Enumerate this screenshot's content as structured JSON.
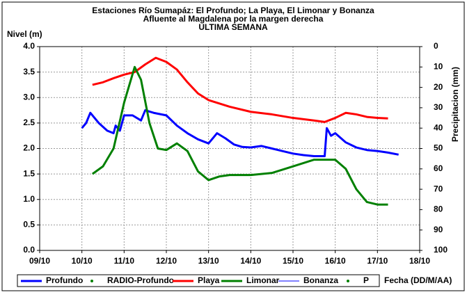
{
  "chart_data": {
    "type": "line",
    "title": "Estaciones Río Sumapáz: El Profundo; La Playa, El Limonar y Bonanza",
    "subtitle": [
      "Afluente al Magdalena por la margen derecha",
      "ULTIMA SEMANA"
    ],
    "ylabel": "Nivel (m)",
    "y2label": "Precipitacion (mm)",
    "xlabel": "Fecha (DD/M/AA)",
    "xlim": [
      9,
      18
    ],
    "xticks": [
      {
        "value": 9,
        "label": "09/10"
      },
      {
        "value": 10,
        "label": "10/10"
      },
      {
        "value": 11,
        "label": "11/10"
      },
      {
        "value": 12,
        "label": "12/10"
      },
      {
        "value": 13,
        "label": "13/10"
      },
      {
        "value": 14,
        "label": "14/10"
      },
      {
        "value": 15,
        "label": "15/10"
      },
      {
        "value": 16,
        "label": "16/10"
      },
      {
        "value": 17,
        "label": "17/10"
      },
      {
        "value": 18,
        "label": "18/10"
      }
    ],
    "ylim": [
      0,
      4
    ],
    "yticks": [
      {
        "value": 0,
        "label": "0.0"
      },
      {
        "value": 0.5,
        "label": "0.5"
      },
      {
        "value": 1,
        "label": "1.0"
      },
      {
        "value": 1.5,
        "label": "1.5"
      },
      {
        "value": 2,
        "label": "2.0"
      },
      {
        "value": 2.5,
        "label": "2.5"
      },
      {
        "value": 3,
        "label": "3.0"
      },
      {
        "value": 3.5,
        "label": "3.5"
      },
      {
        "value": 4,
        "label": "4.0"
      }
    ],
    "y2lim": [
      100,
      0
    ],
    "y2ticks": [
      0,
      10,
      20,
      30,
      40,
      50,
      60,
      70,
      80,
      90,
      100
    ],
    "grid": true,
    "series": [
      {
        "name": "Profundo",
        "color": "#0000ff",
        "marker": "line",
        "width": 3,
        "x": [
          10.0,
          10.1,
          10.2,
          10.4,
          10.6,
          10.75,
          10.8,
          10.9,
          11.0,
          11.2,
          11.4,
          11.5,
          11.7,
          12.0,
          12.25,
          12.5,
          12.75,
          13.0,
          13.2,
          13.4,
          13.6,
          13.8,
          14.0,
          14.25,
          14.5,
          14.75,
          15.0,
          15.25,
          15.5,
          15.75,
          15.8,
          15.9,
          16.0,
          16.25,
          16.5,
          16.75,
          17.0,
          17.25,
          17.5
        ],
        "values": [
          2.4,
          2.5,
          2.7,
          2.5,
          2.35,
          2.3,
          2.45,
          2.35,
          2.65,
          2.65,
          2.55,
          2.75,
          2.7,
          2.65,
          2.45,
          2.3,
          2.18,
          2.1,
          2.3,
          2.2,
          2.08,
          2.03,
          2.02,
          2.05,
          2.0,
          1.95,
          1.9,
          1.87,
          1.85,
          1.85,
          2.4,
          2.25,
          2.3,
          2.12,
          2.02,
          1.97,
          1.95,
          1.92,
          1.88
        ]
      },
      {
        "name": "RADIO-Profundo",
        "color": "#008000",
        "marker": "dot",
        "width": 2,
        "x": [],
        "values": []
      },
      {
        "name": "Playa",
        "color": "#ff0000",
        "marker": "line",
        "width": 3,
        "x": [
          10.25,
          10.5,
          10.75,
          11.0,
          11.25,
          11.5,
          11.75,
          12.0,
          12.25,
          12.5,
          12.75,
          13.0,
          13.5,
          14.0,
          14.5,
          15.0,
          15.5,
          15.75,
          16.0,
          16.25,
          16.5,
          16.75,
          17.0,
          17.25
        ],
        "values": [
          3.25,
          3.3,
          3.38,
          3.45,
          3.5,
          3.65,
          3.78,
          3.7,
          3.55,
          3.3,
          3.08,
          2.95,
          2.82,
          2.72,
          2.67,
          2.6,
          2.55,
          2.52,
          2.6,
          2.7,
          2.67,
          2.62,
          2.6,
          2.59
        ]
      },
      {
        "name": "Limonar",
        "color": "#008000",
        "marker": "line",
        "width": 3,
        "x": [
          10.25,
          10.5,
          10.75,
          11.0,
          11.25,
          11.4,
          11.6,
          11.8,
          12.0,
          12.25,
          12.5,
          12.75,
          13.0,
          13.25,
          13.5,
          14.0,
          14.5,
          15.0,
          15.5,
          16.0,
          16.25,
          16.5,
          16.75,
          17.0,
          17.25
        ],
        "values": [
          1.5,
          1.65,
          2.0,
          2.9,
          3.6,
          3.35,
          2.5,
          2.0,
          1.97,
          2.1,
          1.95,
          1.55,
          1.38,
          1.45,
          1.48,
          1.48,
          1.52,
          1.65,
          1.78,
          1.78,
          1.6,
          1.2,
          0.95,
          0.9,
          0.9
        ]
      },
      {
        "name": "Bonanza",
        "color": "#0000ff",
        "marker": "line",
        "width": 1,
        "x": [],
        "values": []
      },
      {
        "name": "P",
        "color": "#008000",
        "marker": "dot",
        "width": 2,
        "x": [],
        "values": []
      }
    ]
  }
}
